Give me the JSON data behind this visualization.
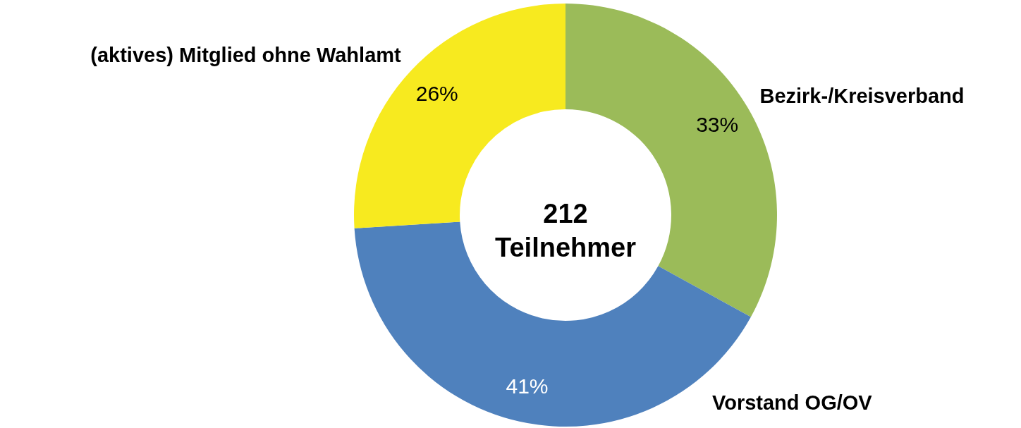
{
  "chart_data": {
    "type": "donut",
    "categories": [
      "Bezirk-/Kreisverband",
      "Vorstand OG/OV",
      "(aktives) Mitglied ohne Wahlamt"
    ],
    "values": [
      33,
      41,
      26
    ],
    "colors": [
      "#9bbb59",
      "#4f81bd",
      "#f7ea1f"
    ],
    "value_labels": [
      "33%",
      "41%",
      "26%"
    ],
    "annotations": [
      "212\nTeilnehmer"
    ]
  }
}
